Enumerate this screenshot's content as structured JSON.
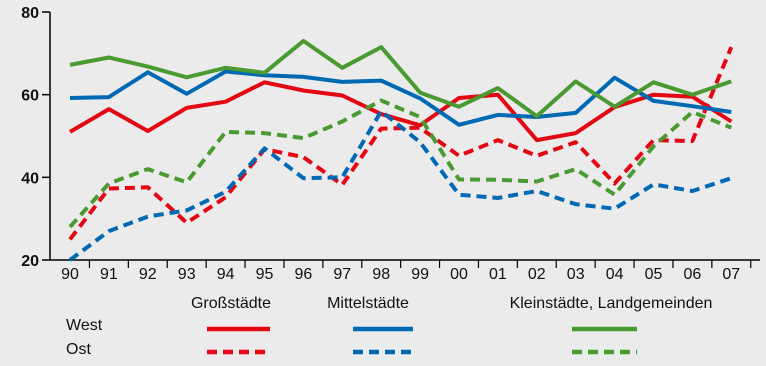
{
  "chart_data": {
    "type": "line",
    "categories": [
      "90",
      "91",
      "92",
      "93",
      "94",
      "95",
      "96",
      "97",
      "98",
      "99",
      "00",
      "01",
      "02",
      "03",
      "04",
      "05",
      "06",
      "07"
    ],
    "ylim": [
      20,
      80
    ],
    "yticks": [
      20,
      40,
      60,
      80
    ],
    "grid": false,
    "legend": {
      "placement": "bottom",
      "group_labels": [
        "Großstädte",
        "Mittelstädte",
        "Kleinstädte, Landgemeinden"
      ],
      "row_labels": [
        "West",
        "Ost"
      ]
    },
    "series": [
      {
        "name": "Großstädte West",
        "group": 0,
        "row": 0,
        "color": "#e30613",
        "dashed": false,
        "values": [
          51,
          56.5,
          51.2,
          56.8,
          58.3,
          63,
          61,
          59.8,
          55.3,
          52.6,
          59.2,
          60,
          49,
          50.7,
          57,
          60,
          59.5,
          53.5
        ]
      },
      {
        "name": "Großstädte Ost",
        "group": 0,
        "row": 1,
        "color": "#e30613",
        "dashed": true,
        "values": [
          25,
          37.3,
          37.6,
          29,
          35.2,
          46.8,
          44.9,
          38.2,
          51.8,
          52,
          45.2,
          49,
          45.2,
          48.5,
          38.5,
          49,
          48.8,
          71.5
        ]
      },
      {
        "name": "Mittelstädte West",
        "group": 1,
        "row": 0,
        "color": "#0069b4",
        "dashed": false,
        "values": [
          59.2,
          59.4,
          65.4,
          60.2,
          65.6,
          64.7,
          64.3,
          63.1,
          63.4,
          59.1,
          52.7,
          55.1,
          54.6,
          55.6,
          64.1,
          58.5,
          57.2,
          55.8
        ]
      },
      {
        "name": "Mittelstädte Ost",
        "group": 1,
        "row": 1,
        "color": "#0069b4",
        "dashed": true,
        "values": [
          20,
          27,
          30.5,
          32,
          36.5,
          47,
          39.8,
          40,
          56,
          48.5,
          35.8,
          35,
          36.7,
          33.5,
          32.4,
          38.3,
          36.7,
          39.8
        ]
      },
      {
        "name": "Kleinstädte, Landgemeinden West",
        "group": 2,
        "row": 0,
        "color": "#4a9a32",
        "dashed": false,
        "values": [
          67.2,
          69,
          66.8,
          64.2,
          66.5,
          65.3,
          73,
          66.5,
          71.5,
          60.5,
          57.1,
          61.6,
          54.8,
          63.2,
          57.1,
          63,
          60,
          63.2
        ]
      },
      {
        "name": "Kleinstädte, Landgemeinden Ost",
        "group": 2,
        "row": 1,
        "color": "#4a9a32",
        "dashed": true,
        "values": [
          28,
          38.5,
          42,
          38.8,
          51,
          50.7,
          49.5,
          53.5,
          58.6,
          54.6,
          39.5,
          39.4,
          39,
          42,
          35.8,
          47.5,
          55.8,
          52
        ]
      }
    ]
  }
}
